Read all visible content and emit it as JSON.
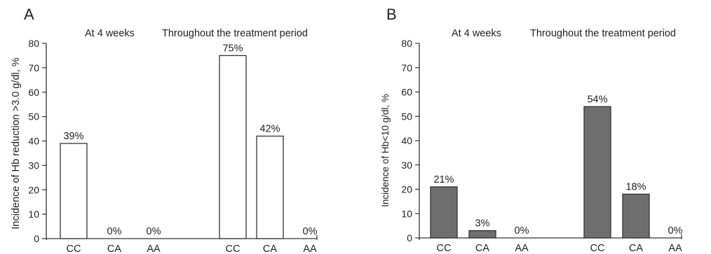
{
  "panels": [
    {
      "letter": "A",
      "heading_left": "At 4 weeks",
      "heading_right": "Throughout the treatment period",
      "fill": "#ffffff"
    },
    {
      "letter": "B",
      "heading_left": "At 4 weeks",
      "heading_right": "Throughout the treatment period",
      "fill": "#6e6e6e"
    }
  ],
  "chart_data": [
    {
      "type": "bar",
      "panel": "A",
      "ylabel": "Incidence of Hb reduction >3.0 g/dl, %",
      "ylim": [
        0,
        80
      ],
      "yticks": [
        0,
        10,
        20,
        30,
        40,
        50,
        60,
        70,
        80
      ],
      "groups": [
        {
          "name": "At 4 weeks",
          "categories": [
            "CC",
            "CA",
            "AA"
          ],
          "values": [
            39,
            0,
            0
          ],
          "labels": [
            "39%",
            "0%",
            "0%"
          ]
        },
        {
          "name": "Throughout the treatment period",
          "categories": [
            "CC",
            "CA",
            "AA"
          ],
          "values": [
            75,
            42,
            0
          ],
          "labels": [
            "75%",
            "42%",
            "0%"
          ]
        }
      ]
    },
    {
      "type": "bar",
      "panel": "B",
      "ylabel": "Incidence of Hb<10 g/dl, %",
      "ylim": [
        0,
        80
      ],
      "yticks": [
        0,
        10,
        20,
        30,
        40,
        50,
        60,
        70,
        80
      ],
      "groups": [
        {
          "name": "At 4 weeks",
          "categories": [
            "CC",
            "CA",
            "AA"
          ],
          "values": [
            21,
            3,
            0
          ],
          "labels": [
            "21%",
            "3%",
            "0%"
          ]
        },
        {
          "name": "Throughout the treatment period",
          "categories": [
            "CC",
            "CA",
            "AA"
          ],
          "values": [
            54,
            18,
            0
          ],
          "labels": [
            "54%",
            "18%",
            "0%"
          ]
        }
      ]
    }
  ]
}
